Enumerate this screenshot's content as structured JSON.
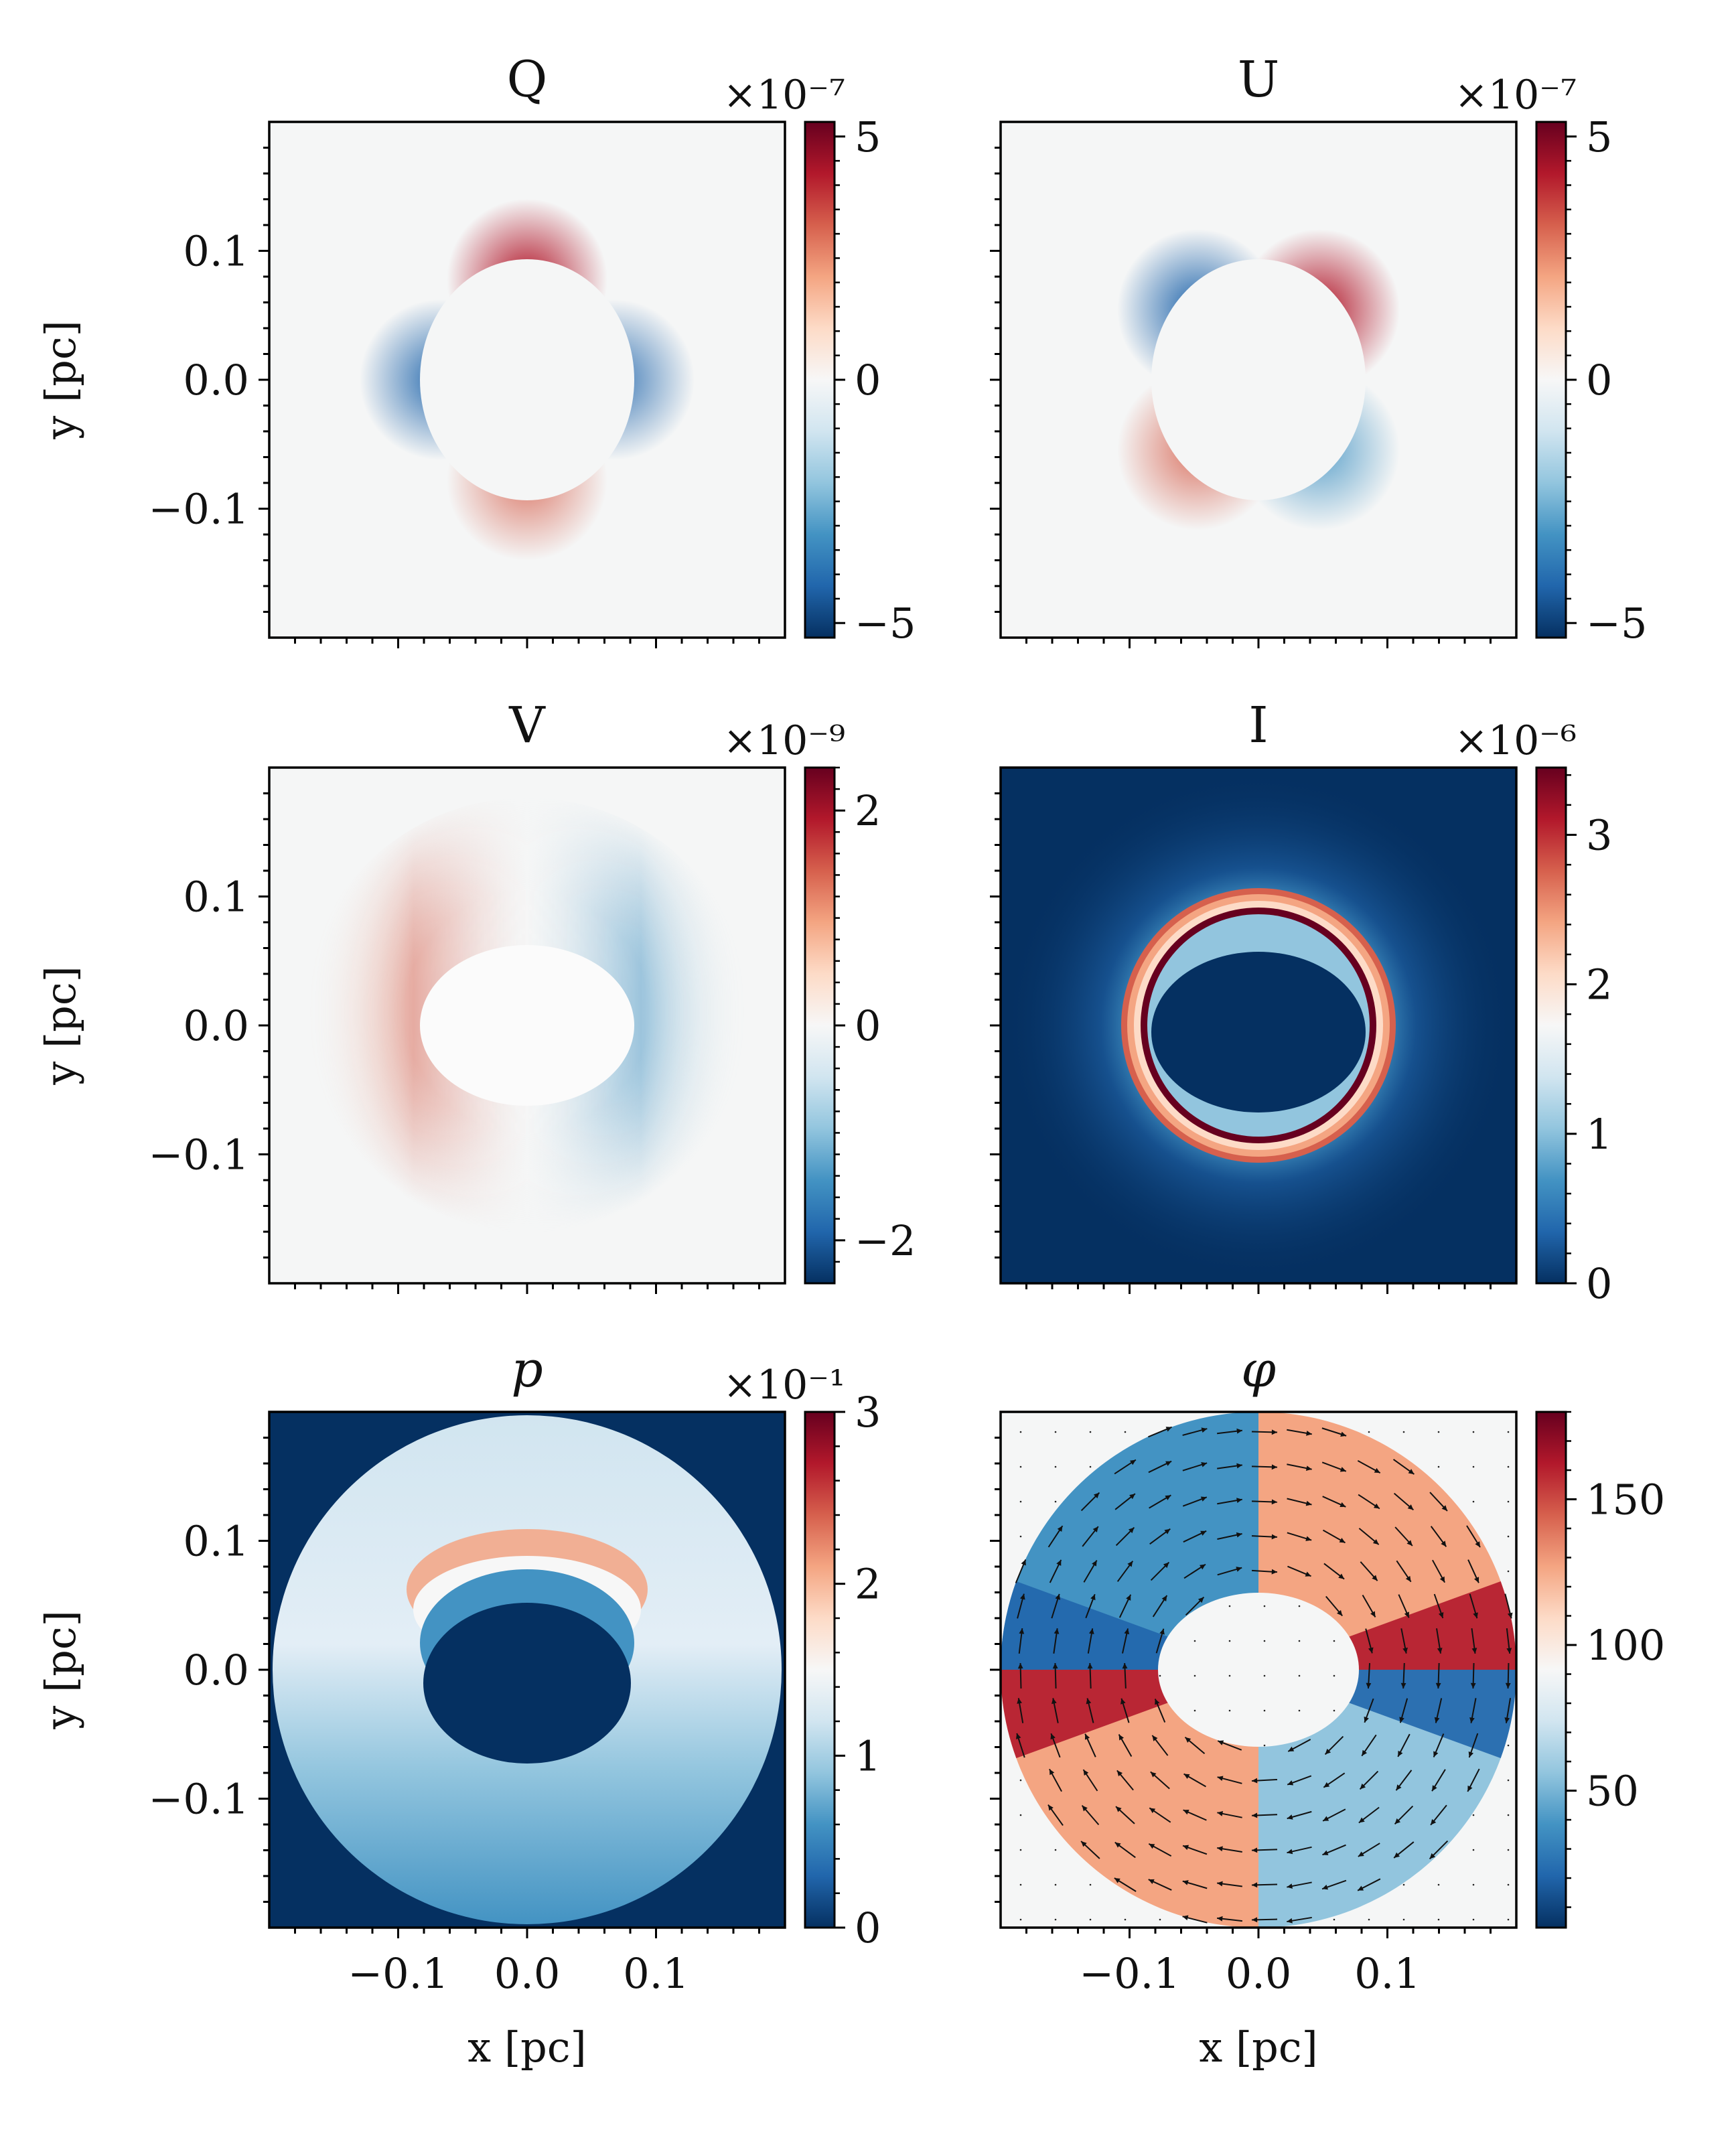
{
  "chart_data": [
    {
      "type": "heatmap",
      "title": "Q",
      "colormap": "RdBu_r",
      "scale_label": "×10⁻⁷",
      "clim": [
        -5.3,
        5.3
      ],
      "cb_ticks": [
        {
          "v": 5,
          "label": "5"
        },
        {
          "v": 0,
          "label": "0"
        },
        {
          "v": -5,
          "label": "−5"
        }
      ],
      "pattern": "Q",
      "ylabel": "y [pc]",
      "xlabel": "",
      "xtick_labels": [],
      "ytick_labels": [
        {
          "v": 0.1,
          "label": "0.1"
        },
        {
          "v": 0.0,
          "label": "0.0"
        },
        {
          "v": -0.1,
          "label": "−0.1"
        }
      ]
    },
    {
      "type": "heatmap",
      "title": "U",
      "colormap": "RdBu_r",
      "scale_label": "×10⁻⁷",
      "clim": [
        -5.3,
        5.3
      ],
      "cb_ticks": [
        {
          "v": 5,
          "label": "5"
        },
        {
          "v": 0,
          "label": "0"
        },
        {
          "v": -5,
          "label": "−5"
        }
      ],
      "pattern": "U",
      "ylabel": "",
      "xlabel": "",
      "xtick_labels": [],
      "ytick_labels": []
    },
    {
      "type": "heatmap",
      "title": "V",
      "colormap": "RdBu_r",
      "scale_label": "×10⁻⁹",
      "clim": [
        -2.4,
        2.4
      ],
      "cb_ticks": [
        {
          "v": 2,
          "label": "2"
        },
        {
          "v": 0,
          "label": "0"
        },
        {
          "v": -2,
          "label": "−2"
        }
      ],
      "pattern": "V",
      "ylabel": "y [pc]",
      "xlabel": "",
      "xtick_labels": [],
      "ytick_labels": [
        {
          "v": 0.1,
          "label": "0.1"
        },
        {
          "v": 0.0,
          "label": "0.0"
        },
        {
          "v": -0.1,
          "label": "−0.1"
        }
      ]
    },
    {
      "type": "heatmap",
      "title": "I",
      "colormap": "RdBu_r",
      "scale_label": "×10⁻⁶",
      "clim": [
        0,
        3.45
      ],
      "cb_ticks": [
        {
          "v": 3,
          "label": "3"
        },
        {
          "v": 2,
          "label": "2"
        },
        {
          "v": 1,
          "label": "1"
        },
        {
          "v": 0,
          "label": "0"
        }
      ],
      "pattern": "I",
      "ylabel": "",
      "xlabel": "",
      "xtick_labels": [],
      "ytick_labels": []
    },
    {
      "type": "heatmap",
      "title": "p",
      "colormap": "RdBu_r",
      "scale_label": "×10⁻¹",
      "clim": [
        0,
        3.0
      ],
      "cb_ticks": [
        {
          "v": 3,
          "label": "3"
        },
        {
          "v": 2,
          "label": "2"
        },
        {
          "v": 1,
          "label": "1"
        },
        {
          "v": 0,
          "label": "0"
        }
      ],
      "pattern": "p",
      "ylabel": "y [pc]",
      "xlabel": "x [pc]",
      "xtick_labels": [
        {
          "v": -0.1,
          "label": "−0.1"
        },
        {
          "v": 0.0,
          "label": "0.0"
        },
        {
          "v": 0.1,
          "label": "0.1"
        }
      ],
      "ytick_labels": [
        {
          "v": 0.1,
          "label": "0.1"
        },
        {
          "v": 0.0,
          "label": "0.0"
        },
        {
          "v": -0.1,
          "label": "−0.1"
        }
      ]
    },
    {
      "type": "heatmap",
      "title": "φ",
      "colormap": "RdBu_r",
      "scale_label": "",
      "clim": [
        3,
        180
      ],
      "cb_ticks": [
        {
          "v": 150,
          "label": "150"
        },
        {
          "v": 100,
          "label": "100"
        },
        {
          "v": 50,
          "label": "50"
        }
      ],
      "pattern": "phi",
      "ylabel": "",
      "xlabel": "x [pc]",
      "xtick_labels": [
        {
          "v": -0.1,
          "label": "−0.1"
        },
        {
          "v": 0.0,
          "label": "0.0"
        },
        {
          "v": 0.1,
          "label": "0.1"
        }
      ],
      "ytick_labels": []
    }
  ],
  "axes": {
    "xlim": [
      -0.2,
      0.2
    ],
    "ylim": [
      -0.2,
      0.2
    ],
    "minor_tick_step": 0.02
  },
  "colors": {
    "cmap_stops": [
      "#053061",
      "#2166ac",
      "#4393c3",
      "#92c5de",
      "#d1e5f0",
      "#f7f7f7",
      "#fddbc7",
      "#f4a582",
      "#d6604d",
      "#b2182b",
      "#67001f"
    ],
    "frame": "#000000",
    "background": "#f5f6f6"
  }
}
